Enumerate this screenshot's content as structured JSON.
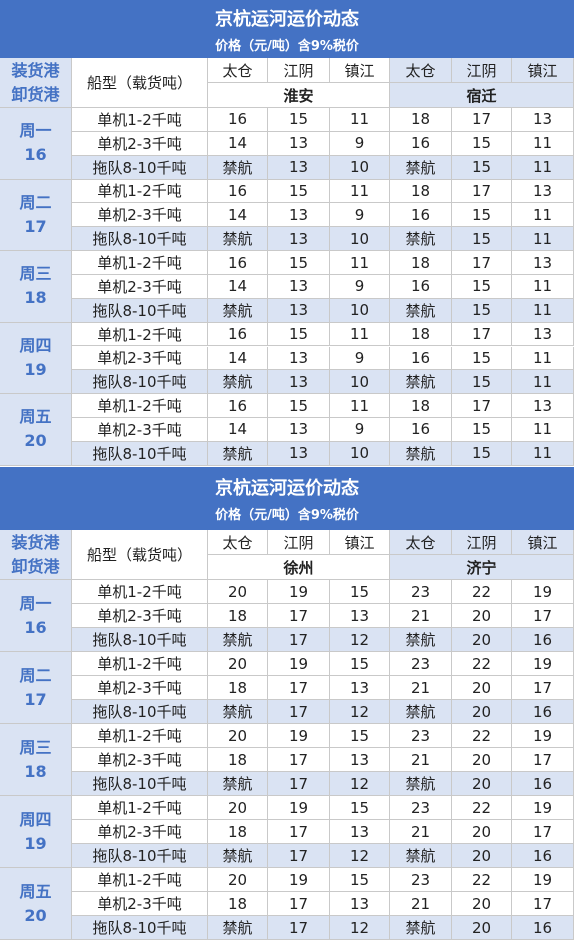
{
  "tables": [
    {
      "title": "京杭运河运价动态",
      "subtitle": "价格（元/吨）含9%税价",
      "corner": [
        "装货港",
        "卸货港"
      ],
      "ship_type_header": "船型（载货吨）",
      "groups": [
        {
          "destination": "淮安",
          "ports": [
            "太仓",
            "江阴",
            "镇江"
          ]
        },
        {
          "destination": "宿迁",
          "ports": [
            "太仓",
            "江阴",
            "镇江"
          ]
        }
      ],
      "days": [
        {
          "label": "周一",
          "date": "16",
          "rows": [
            {
              "ship": "单机1-2千吨",
              "prices": [
                16,
                15,
                11,
                18,
                17,
                13
              ]
            },
            {
              "ship": "单机2-3千吨",
              "prices": [
                14,
                13,
                9,
                16,
                15,
                11
              ]
            },
            {
              "ship": "拖队8-10千吨",
              "prices": [
                "禁航",
                13,
                10,
                "禁航",
                15,
                11
              ]
            }
          ]
        },
        {
          "label": "周二",
          "date": "17",
          "rows": [
            {
              "ship": "单机1-2千吨",
              "prices": [
                16,
                15,
                11,
                18,
                17,
                13
              ]
            },
            {
              "ship": "单机2-3千吨",
              "prices": [
                14,
                13,
                9,
                16,
                15,
                11
              ]
            },
            {
              "ship": "拖队8-10千吨",
              "prices": [
                "禁航",
                13,
                10,
                "禁航",
                15,
                11
              ]
            }
          ]
        },
        {
          "label": "周三",
          "date": "18",
          "rows": [
            {
              "ship": "单机1-2千吨",
              "prices": [
                16,
                15,
                11,
                18,
                17,
                13
              ]
            },
            {
              "ship": "单机2-3千吨",
              "prices": [
                14,
                13,
                9,
                16,
                15,
                11
              ]
            },
            {
              "ship": "拖队8-10千吨",
              "prices": [
                "禁航",
                13,
                10,
                "禁航",
                15,
                11
              ]
            }
          ]
        },
        {
          "label": "周四",
          "date": "19",
          "rows": [
            {
              "ship": "单机1-2千吨",
              "prices": [
                16,
                15,
                11,
                18,
                17,
                13
              ]
            },
            {
              "ship": "单机2-3千吨",
              "prices": [
                14,
                13,
                9,
                16,
                15,
                11
              ]
            },
            {
              "ship": "拖队8-10千吨",
              "prices": [
                "禁航",
                13,
                10,
                "禁航",
                15,
                11
              ]
            }
          ]
        },
        {
          "label": "周五",
          "date": "20",
          "rows": [
            {
              "ship": "单机1-2千吨",
              "prices": [
                16,
                15,
                11,
                18,
                17,
                13
              ]
            },
            {
              "ship": "单机2-3千吨",
              "prices": [
                14,
                13,
                9,
                16,
                15,
                11
              ]
            },
            {
              "ship": "拖队8-10千吨",
              "prices": [
                "禁航",
                13,
                10,
                "禁航",
                15,
                11
              ]
            }
          ]
        }
      ]
    },
    {
      "title": "京杭运河运价动态",
      "subtitle": "价格（元/吨）含9%税价",
      "corner": [
        "装货港",
        "卸货港"
      ],
      "ship_type_header": "船型（载货吨）",
      "groups": [
        {
          "destination": "徐州",
          "ports": [
            "太仓",
            "江阴",
            "镇江"
          ]
        },
        {
          "destination": "济宁",
          "ports": [
            "太仓",
            "江阴",
            "镇江"
          ]
        }
      ],
      "days": [
        {
          "label": "周一",
          "date": "16",
          "rows": [
            {
              "ship": "单机1-2千吨",
              "prices": [
                20,
                19,
                15,
                23,
                22,
                19
              ]
            },
            {
              "ship": "单机2-3千吨",
              "prices": [
                18,
                17,
                13,
                21,
                20,
                17
              ]
            },
            {
              "ship": "拖队8-10千吨",
              "prices": [
                "禁航",
                17,
                12,
                "禁航",
                20,
                16
              ]
            }
          ]
        },
        {
          "label": "周二",
          "date": "17",
          "rows": [
            {
              "ship": "单机1-2千吨",
              "prices": [
                20,
                19,
                15,
                23,
                22,
                19
              ]
            },
            {
              "ship": "单机2-3千吨",
              "prices": [
                18,
                17,
                13,
                21,
                20,
                17
              ]
            },
            {
              "ship": "拖队8-10千吨",
              "prices": [
                "禁航",
                17,
                12,
                "禁航",
                20,
                16
              ]
            }
          ]
        },
        {
          "label": "周三",
          "date": "18",
          "rows": [
            {
              "ship": "单机1-2千吨",
              "prices": [
                20,
                19,
                15,
                23,
                22,
                19
              ]
            },
            {
              "ship": "单机2-3千吨",
              "prices": [
                18,
                17,
                13,
                21,
                20,
                17
              ]
            },
            {
              "ship": "拖队8-10千吨",
              "prices": [
                "禁航",
                17,
                12,
                "禁航",
                20,
                16
              ]
            }
          ]
        },
        {
          "label": "周四",
          "date": "19",
          "rows": [
            {
              "ship": "单机1-2千吨",
              "prices": [
                20,
                19,
                15,
                23,
                22,
                19
              ]
            },
            {
              "ship": "单机2-3千吨",
              "prices": [
                18,
                17,
                13,
                21,
                20,
                17
              ]
            },
            {
              "ship": "拖队8-10千吨",
              "prices": [
                "禁航",
                17,
                12,
                "禁航",
                20,
                16
              ]
            }
          ]
        },
        {
          "label": "周五",
          "date": "20",
          "rows": [
            {
              "ship": "单机1-2千吨",
              "prices": [
                20,
                19,
                15,
                23,
                22,
                19
              ]
            },
            {
              "ship": "单机2-3千吨",
              "prices": [
                18,
                17,
                13,
                21,
                20,
                17
              ]
            },
            {
              "ship": "拖队8-10千吨",
              "prices": [
                "禁航",
                17,
                12,
                "禁航",
                20,
                16
              ]
            }
          ]
        }
      ]
    }
  ]
}
